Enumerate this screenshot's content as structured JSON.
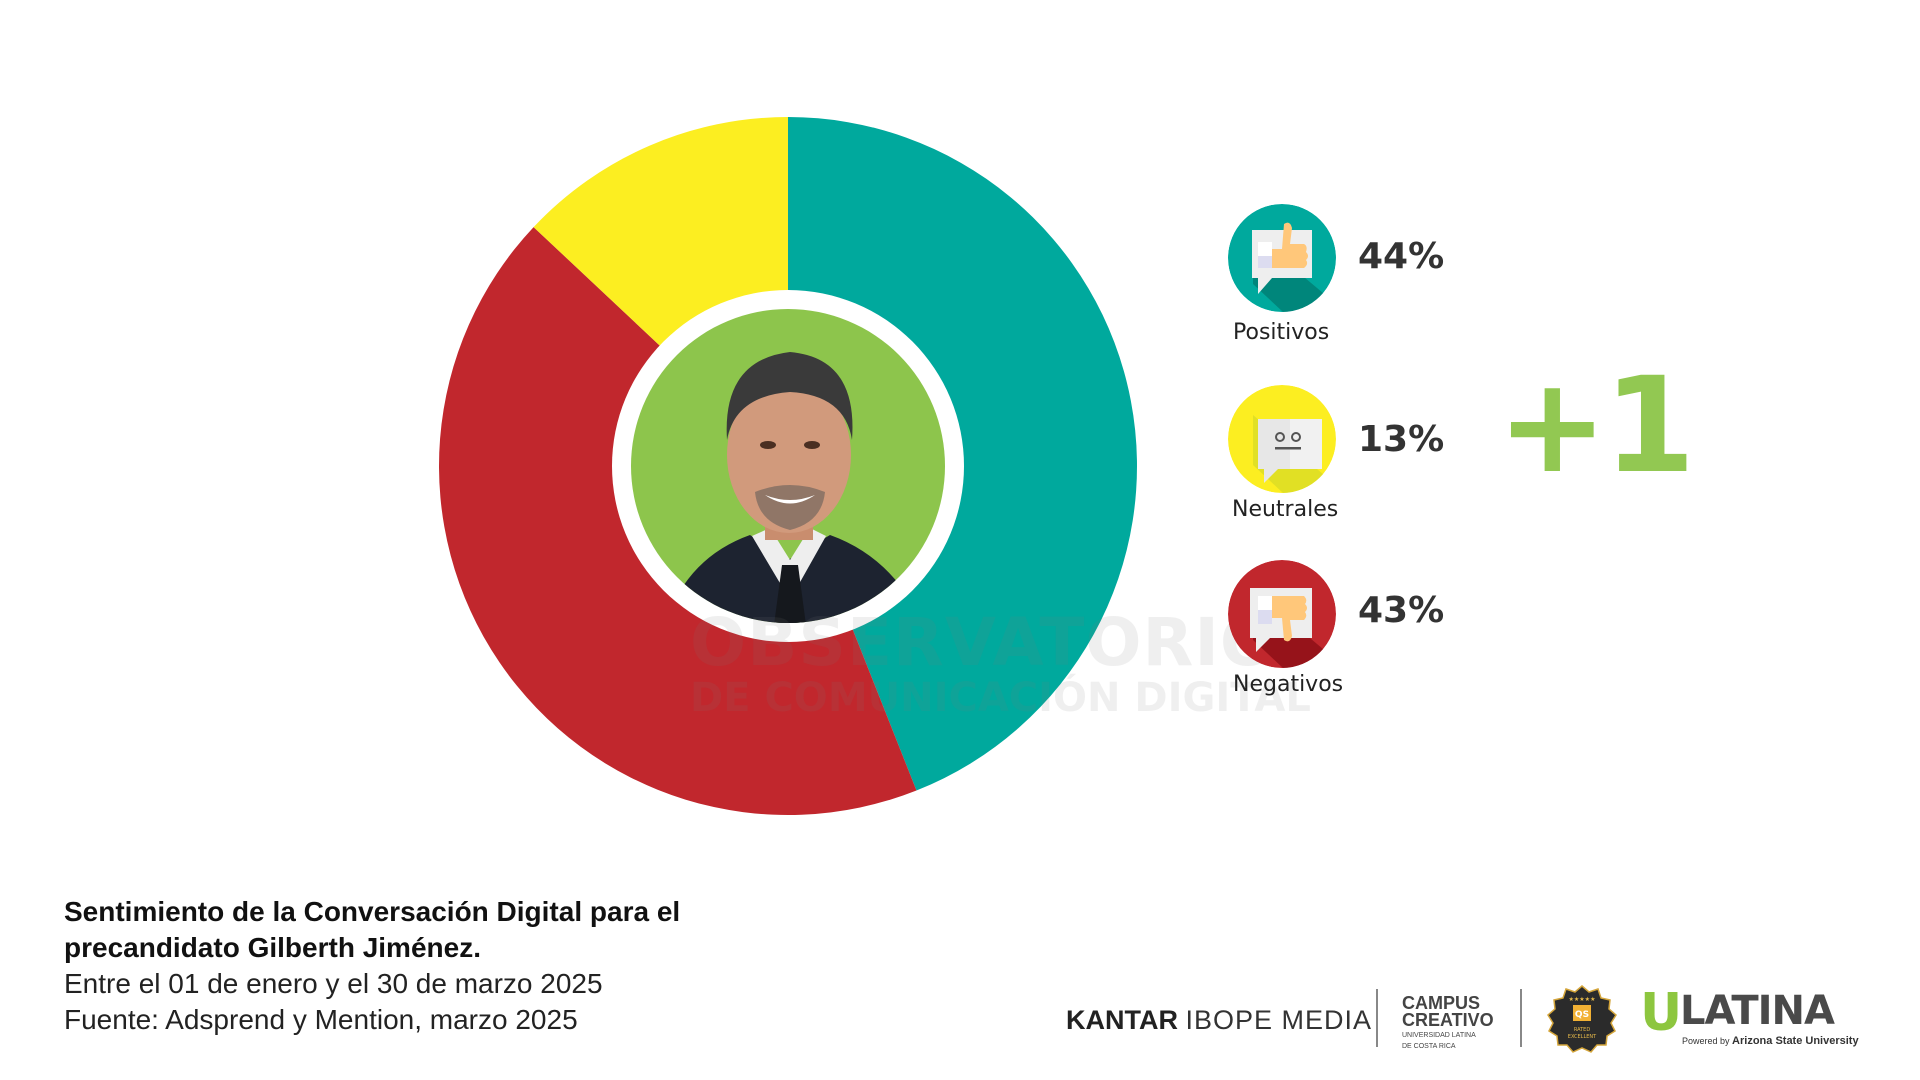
{
  "chart_data": {
    "type": "pie",
    "variant": "donut",
    "title": "Sentimiento de la Conversación Digital para el precandidato Gilberth Jiménez.",
    "categories": [
      "Positivos",
      "Negativos",
      "Neutrales"
    ],
    "values": [
      44,
      43,
      13
    ],
    "unit": "%",
    "start": "top",
    "direction": "clockwise",
    "legend_position": "right",
    "colors": [
      "#00a99d",
      "#c1272d",
      "#fcee21"
    ]
  },
  "legend": {
    "items": [
      {
        "key": "positivos",
        "label": "Positivos",
        "pct": "44%",
        "icon": "thumbs-up-speech-bubble-icon",
        "color": "#00a99d",
        "shade": "#007d73"
      },
      {
        "key": "neutrales",
        "label": "Neutrales",
        "pct": "13%",
        "icon": "neutral-face-speech-bubble-icon",
        "color": "#fcee21",
        "shade": "#dede25"
      },
      {
        "key": "negativos",
        "label": "Negativos",
        "pct": "43%",
        "icon": "thumbs-down-speech-bubble-icon",
        "color": "#c1272d",
        "shade": "#8e1117"
      }
    ]
  },
  "delta": {
    "text": "+1",
    "color": "#92c852"
  },
  "center_photo": {
    "icon": "candidate-portrait",
    "background": "#8dc54c"
  },
  "watermark": {
    "line1": "OBSERVATORIO",
    "line2": "DE COMUNICACIÓN DIGITAL"
  },
  "caption": {
    "title_line1": "Sentimiento de la Conversación Digital para el",
    "title_line2": "precandidato Gilberth Jiménez.",
    "period": "Entre el 01 de enero y el 30 de marzo 2025",
    "source": "Fuente: Adsprend y Mention, marzo 2025"
  },
  "logos": {
    "kantar_bold": "KANTAR",
    "kantar_light": "IBOPE MEDIA",
    "campus_line1": "CAMPUS",
    "campus_line2": "CREATIVO",
    "campus_sub1": "UNIVERSIDAD LATINA",
    "campus_sub2": "DE COSTA RICA",
    "qs_badge_top": "QS",
    "qs_badge_line1": "RATED",
    "qs_badge_line2": "EXCELLENT",
    "ulatina_u": "U",
    "ulatina_rest": "LATINA",
    "ulatina_powered": "Powered by",
    "ulatina_asu": "Arizona State University"
  }
}
